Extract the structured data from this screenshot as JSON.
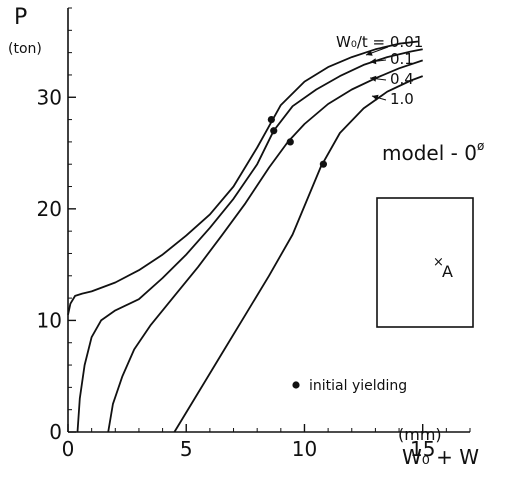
{
  "chart_data": {
    "type": "line",
    "ylabel": "P",
    "yunit": "(ton)",
    "xlabel": "W₀ + W",
    "xunit": "(mm)",
    "xlim": [
      0,
      17
    ],
    "ylim": [
      0,
      38
    ],
    "xticks": [
      0,
      5,
      10,
      15
    ],
    "yticks": [
      0,
      10,
      20,
      30
    ],
    "grid": false,
    "model_label": "model - 0",
    "model_superscript": "ø",
    "point_label": "A",
    "legend_text": "initial yielding",
    "series": [
      {
        "name": "W₀/t = 0.01",
        "x": [
          0,
          0.1,
          0.3,
          0.6,
          1.0,
          2.0,
          3.0,
          4.0,
          5.0,
          6.0,
          7.0,
          8.0,
          9.0,
          10.0,
          11.0,
          12.0,
          13.0,
          14.0,
          14.8
        ],
        "y": [
          10.5,
          11.5,
          12.2,
          12.4,
          12.6,
          13.4,
          14.5,
          15.9,
          17.6,
          19.5,
          22.0,
          25.5,
          29.3,
          31.4,
          32.7,
          33.6,
          34.3,
          34.8,
          35.0
        ],
        "yield_point": [
          8.6,
          28.0
        ]
      },
      {
        "name": "0.1",
        "x": [
          0.4,
          0.5,
          0.7,
          1.0,
          1.4,
          2.0,
          3.0,
          4.0,
          5.0,
          6.0,
          7.0,
          8.0,
          8.7,
          9.5,
          10.5,
          11.5,
          12.5,
          13.5,
          14.5,
          15.0
        ],
        "y": [
          0,
          3.0,
          6.0,
          8.5,
          10.0,
          10.9,
          11.9,
          13.8,
          15.9,
          18.3,
          20.9,
          24.0,
          27.0,
          29.2,
          30.7,
          31.9,
          32.9,
          33.6,
          34.1,
          34.3
        ],
        "yield_point": [
          8.7,
          27.0
        ]
      },
      {
        "name": "0.4",
        "x": [
          1.7,
          1.9,
          2.3,
          2.8,
          3.5,
          4.5,
          5.5,
          6.5,
          7.5,
          8.5,
          9.3,
          10.0,
          11.0,
          12.0,
          13.0,
          14.0,
          15.0
        ],
        "y": [
          0,
          2.5,
          5.0,
          7.4,
          9.6,
          12.2,
          14.8,
          17.6,
          20.5,
          23.7,
          26.0,
          27.6,
          29.4,
          30.7,
          31.7,
          32.6,
          33.3
        ],
        "yield_point": [
          9.4,
          26.0
        ]
      },
      {
        "name": "1.0",
        "x": [
          4.5,
          5.5,
          6.5,
          7.5,
          8.5,
          9.5,
          10.7,
          11.5,
          12.5,
          13.5,
          14.5,
          15.0
        ],
        "y": [
          0,
          3.5,
          7.0,
          10.5,
          14.0,
          17.7,
          23.8,
          26.8,
          29.0,
          30.5,
          31.5,
          31.9
        ],
        "yield_point": [
          10.8,
          24.0
        ]
      }
    ]
  }
}
